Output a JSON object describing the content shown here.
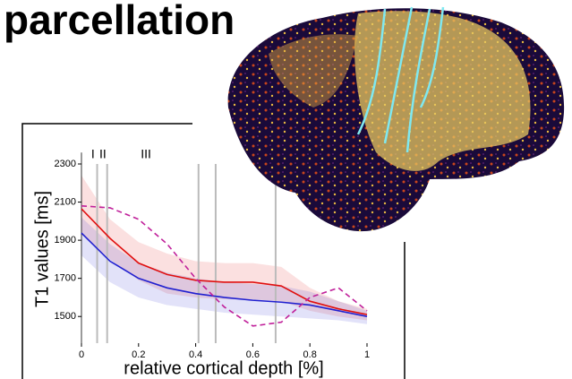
{
  "title": "parcellation",
  "chart_data": {
    "type": "line",
    "y_label": "T1 values [ms]",
    "x_label": "relative cortical depth [%]",
    "x": [
      0,
      0.1,
      0.2,
      0.3,
      0.4,
      0.5,
      0.6,
      0.7,
      0.8,
      0.9,
      1
    ],
    "xlim": [
      0,
      1
    ],
    "xticks": [
      0,
      0.2,
      0.4,
      0.6,
      0.8,
      1
    ],
    "ylim": [
      1360,
      2360
    ],
    "yticks": [
      1500,
      1700,
      1900,
      2100,
      2300
    ],
    "series": [
      {
        "color": "#e01010",
        "values": [
          2065,
          1910,
          1780,
          1720,
          1690,
          1680,
          1680,
          1660,
          1580,
          1540,
          1510
        ],
        "band_lower": [
          1930,
          1800,
          1690,
          1620,
          1600,
          1590,
          1590,
          1580,
          1530,
          1500,
          1480
        ],
        "band_upper": [
          2240,
          2010,
          1890,
          1830,
          1790,
          1780,
          1780,
          1760,
          1650,
          1580,
          1540
        ]
      },
      {
        "color": "#2020d0",
        "values": [
          1938,
          1790,
          1700,
          1650,
          1620,
          1600,
          1585,
          1575,
          1560,
          1530,
          1500
        ],
        "band_lower": [
          1820,
          1680,
          1600,
          1560,
          1540,
          1520,
          1510,
          1500,
          1490,
          1480,
          1460
        ],
        "band_upper": [
          2020,
          1880,
          1780,
          1730,
          1700,
          1680,
          1670,
          1660,
          1630,
          1580,
          1530
        ]
      },
      {
        "color": "#c0209a",
        "dashed": true,
        "values": [
          2080,
          2070,
          2010,
          1880,
          1700,
          1550,
          1450,
          1470,
          1600,
          1650,
          1530
        ]
      }
    ],
    "boundaries": [
      0.055,
      0.09,
      0.41,
      0.47,
      0.68
    ],
    "layer_labels": [
      {
        "label": "I",
        "x": 0.04
      },
      {
        "label": "II",
        "x": 0.075
      },
      {
        "label": "III",
        "x": 0.226
      }
    ]
  }
}
